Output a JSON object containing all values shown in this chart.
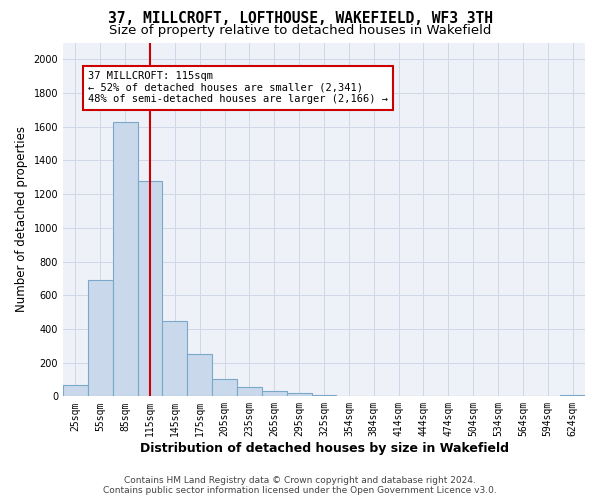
{
  "title": "37, MILLCROFT, LOFTHOUSE, WAKEFIELD, WF3 3TH",
  "subtitle": "Size of property relative to detached houses in Wakefield",
  "xlabel": "Distribution of detached houses by size in Wakefield",
  "ylabel": "Number of detached properties",
  "footer_line1": "Contains HM Land Registry data © Crown copyright and database right 2024.",
  "footer_line2": "Contains public sector information licensed under the Open Government Licence v3.0.",
  "bar_labels": [
    "25sqm",
    "55sqm",
    "85sqm",
    "115sqm",
    "145sqm",
    "175sqm",
    "205sqm",
    "235sqm",
    "265sqm",
    "295sqm",
    "325sqm",
    "354sqm",
    "384sqm",
    "414sqm",
    "444sqm",
    "474sqm",
    "504sqm",
    "534sqm",
    "564sqm",
    "594sqm",
    "624sqm"
  ],
  "bar_values": [
    65,
    690,
    1630,
    1280,
    450,
    250,
    100,
    55,
    30,
    20,
    5,
    0,
    0,
    0,
    0,
    0,
    0,
    0,
    0,
    0,
    5
  ],
  "bar_color": "#c9d9eb",
  "bar_edge_color": "#7ba7c9",
  "vline_index": 3,
  "vline_color": "#cc0000",
  "annotation_text": "37 MILLCROFT: 115sqm\n← 52% of detached houses are smaller (2,341)\n48% of semi-detached houses are larger (2,166) →",
  "annotation_box_color": "#ffffff",
  "annotation_box_edge_color": "#cc0000",
  "ylim": [
    0,
    2100
  ],
  "yticks": [
    0,
    200,
    400,
    600,
    800,
    1000,
    1200,
    1400,
    1600,
    1800,
    2000
  ],
  "grid_color": "#d0d8e8",
  "background_color": "#eef2f8",
  "title_fontsize": 10.5,
  "subtitle_fontsize": 9.5,
  "ylabel_fontsize": 8.5,
  "xlabel_fontsize": 9,
  "tick_fontsize": 7,
  "footer_fontsize": 6.5,
  "annot_fontsize": 7.5
}
